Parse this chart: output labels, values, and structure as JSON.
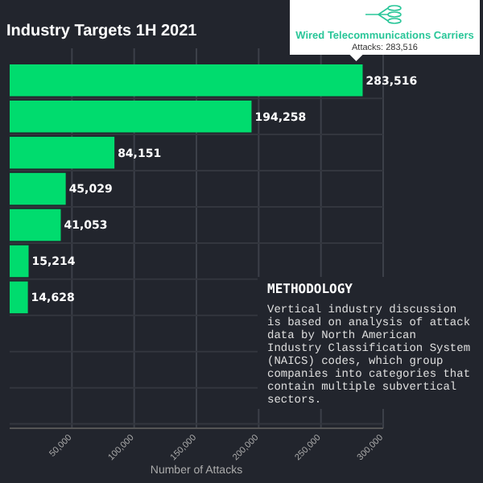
{
  "chart_data": {
    "type": "bar",
    "orientation": "horizontal",
    "title": "Industry Targets 1H 2021",
    "xlabel": "Number of Attacks",
    "categories": [
      null,
      null,
      null,
      null,
      null,
      null,
      null,
      null,
      null,
      null
    ],
    "values": [
      283516,
      194258,
      84151,
      45029,
      41053,
      15214,
      14628,
      null,
      null,
      null
    ],
    "color": "#00dc6e",
    "value_labels": [
      "283,516",
      "194,258",
      "84,151",
      "45,029",
      "41,053",
      "15,214",
      "14,628",
      null,
      null,
      null
    ],
    "grid": "x",
    "xlim": [
      0,
      300000
    ],
    "xticks": [
      {
        "value": 50000,
        "label": "50,000"
      },
      {
        "value": 100000,
        "label": "100,000"
      },
      {
        "value": 150000,
        "label": "150,000"
      },
      {
        "value": 200000,
        "label": "200,000"
      },
      {
        "value": 250000,
        "label": "250,000"
      },
      {
        "value": 300000,
        "label": "300,000"
      }
    ],
    "annotations": [
      "Wired Telecommunications Carriers",
      "Attacks: 283,516",
      "METHODOLOGY",
      "Vertical industry discussion is based on analysis of attack data by North American Industry Classification System (NAICS) codes, which group companies into categories that contain multiple subvertical sectors."
    ]
  }
}
